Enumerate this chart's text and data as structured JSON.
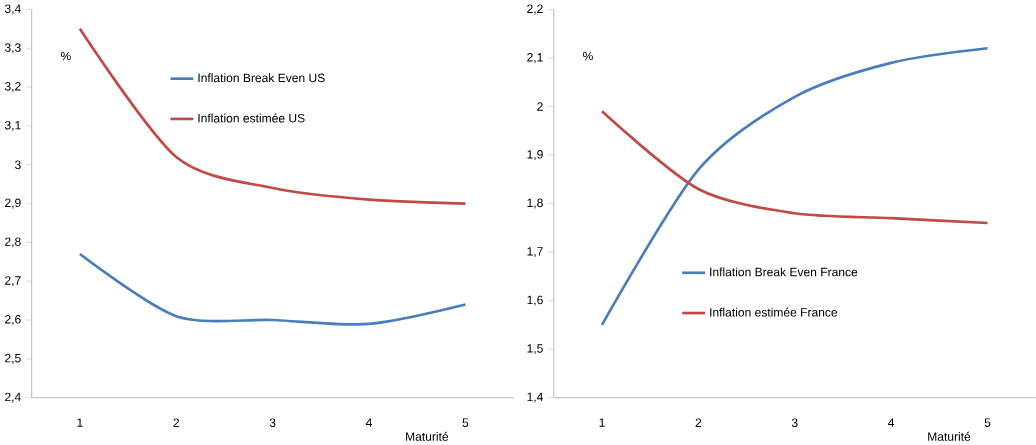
{
  "chart_data": [
    {
      "type": "line",
      "xlabel": "Maturité",
      "ylabel": "%",
      "categories": [
        "1",
        "2",
        "3",
        "4",
        "5"
      ],
      "series": [
        {
          "name": "Inflation Break Even US",
          "color": "#4a7ebb",
          "values": [
            2.77,
            2.61,
            2.6,
            2.59,
            2.64
          ]
        },
        {
          "name": "Inflation estimée US",
          "color": "#be4b48",
          "values": [
            3.35,
            3.02,
            2.94,
            2.91,
            2.9
          ]
        }
      ],
      "ylim": [
        2.4,
        3.4
      ],
      "yticks": [
        {
          "value": 2.4,
          "label": "2,4"
        },
        {
          "value": 2.5,
          "label": "2,5"
        },
        {
          "value": 2.6,
          "label": "2,6"
        },
        {
          "value": 2.7,
          "label": "2,7"
        },
        {
          "value": 2.8,
          "label": "2,8"
        },
        {
          "value": 2.9,
          "label": "2,9"
        },
        {
          "value": 3,
          "label": "3"
        },
        {
          "value": 3.1,
          "label": "3,1"
        },
        {
          "value": 3.2,
          "label": "3,2"
        },
        {
          "value": 3.3,
          "label": "3,3"
        },
        {
          "value": 3.4,
          "label": "3,4"
        }
      ],
      "legend": "top",
      "grid": false,
      "marker": "none"
    },
    {
      "type": "line",
      "xlabel": "Maturité",
      "ylabel": "%",
      "categories": [
        "1",
        "2",
        "3",
        "4",
        "5"
      ],
      "series": [
        {
          "name": "Inflation Break Even France",
          "color": "#4a7ebb",
          "values": [
            1.55,
            1.87,
            2.02,
            2.09,
            2.12
          ]
        },
        {
          "name": "Inflation estimée France",
          "color": "#be4b48",
          "values": [
            1.99,
            1.83,
            1.78,
            1.77,
            1.76
          ]
        }
      ],
      "ylim": [
        1.4,
        2.2
      ],
      "yticks": [
        {
          "value": 1.4,
          "label": "1,4"
        },
        {
          "value": 1.5,
          "label": "1,5"
        },
        {
          "value": 1.6,
          "label": "1,6"
        },
        {
          "value": 1.7,
          "label": "1,7"
        },
        {
          "value": 1.8,
          "label": "1,8"
        },
        {
          "value": 1.9,
          "label": "1,9"
        },
        {
          "value": 2,
          "label": "2"
        },
        {
          "value": 2.1,
          "label": "2,1"
        },
        {
          "value": 2.2,
          "label": "2,2"
        }
      ],
      "legend": "bottom",
      "grid": false,
      "marker": "none"
    }
  ]
}
